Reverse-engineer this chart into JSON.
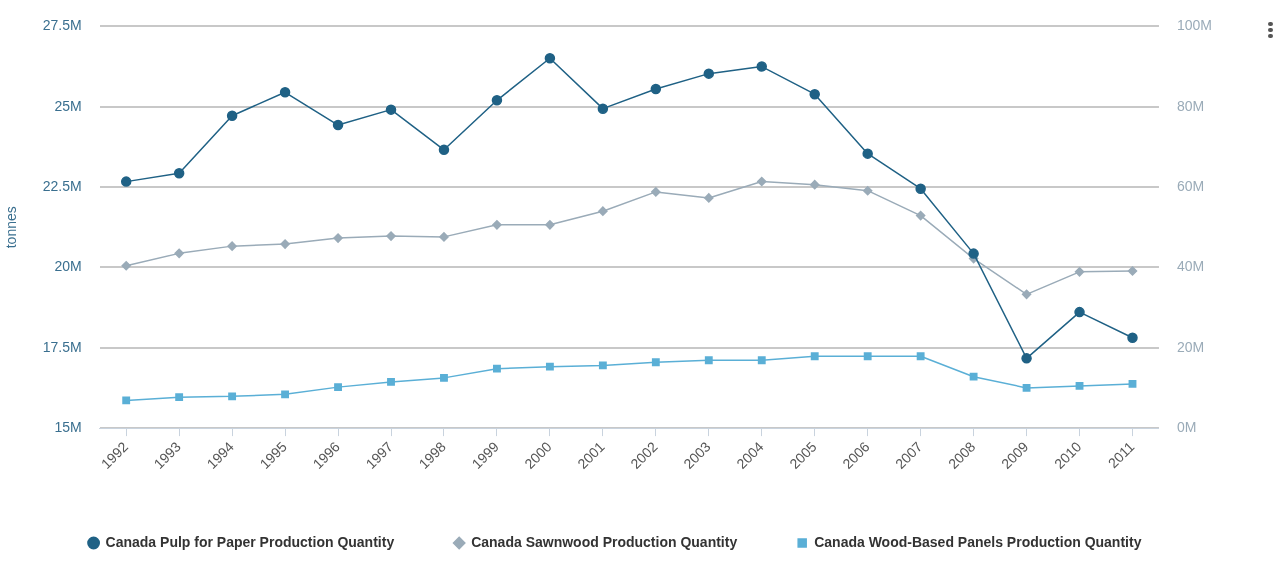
{
  "chart_data": {
    "type": "line",
    "ylabel": "tonnes",
    "categories": [
      "1992",
      "1993",
      "1994",
      "1995",
      "1996",
      "1997",
      "1998",
      "1999",
      "2000",
      "2001",
      "2002",
      "2003",
      "2004",
      "2005",
      "2006",
      "2007",
      "2008",
      "2009",
      "2010",
      "2011"
    ],
    "series": [
      {
        "name": "Canada\nPulp for Paper\nProduction Quantity",
        "color": "#1f6185",
        "marker": "circle",
        "values": [
          22.67,
          22.93,
          24.72,
          25.45,
          24.43,
          24.91,
          23.66,
          25.2,
          26.51,
          24.94,
          25.55,
          26.03,
          26.25,
          25.39,
          23.54,
          22.45,
          20.43,
          17.17,
          18.61,
          17.81
        ]
      },
      {
        "name": "Canada\nSawnwood\nProduction Quantity",
        "color": "#9aabb8",
        "marker": "diamond",
        "axis": "y2",
        "values": [
          40.4,
          43.5,
          45.3,
          45.8,
          47.3,
          47.8,
          47.6,
          50.6,
          50.6,
          54.0,
          58.8,
          57.3,
          61.4,
          60.6,
          59.1,
          52.9,
          42.2,
          33.3,
          38.9,
          39.1
        ]
      },
      {
        "name": "Canada\nWood-Based Panels\nProduction Quantity",
        "color": "#5aafd6",
        "marker": "square",
        "axis": "y2",
        "values": [
          6.9,
          7.7,
          7.9,
          8.4,
          10.2,
          11.5,
          12.5,
          14.8,
          15.3,
          15.6,
          16.4,
          16.9,
          16.9,
          17.9,
          17.9,
          17.9,
          12.8,
          10.0,
          10.5,
          11.0
        ]
      }
    ],
    "ylim": [
      15,
      27.5
    ],
    "yticks": [
      {
        "value": 15,
        "label": "15M"
      },
      {
        "value": 17.5,
        "label": "17.5M"
      },
      {
        "value": 20,
        "label": "20M"
      },
      {
        "value": 22.5,
        "label": "22.5M"
      },
      {
        "value": 25,
        "label": "25M"
      },
      {
        "value": 27.5,
        "label": "27.5M"
      }
    ],
    "y2lim": [
      0,
      100
    ],
    "y2ticks": [
      {
        "value": 0,
        "label": "0M"
      },
      {
        "value": 20,
        "label": "20M"
      },
      {
        "value": 40,
        "label": "40M"
      },
      {
        "value": 60,
        "label": "60M"
      },
      {
        "value": 80,
        "label": "80M"
      },
      {
        "value": 100,
        "label": "100M"
      }
    ],
    "grid": "y",
    "legend": "bottom"
  }
}
